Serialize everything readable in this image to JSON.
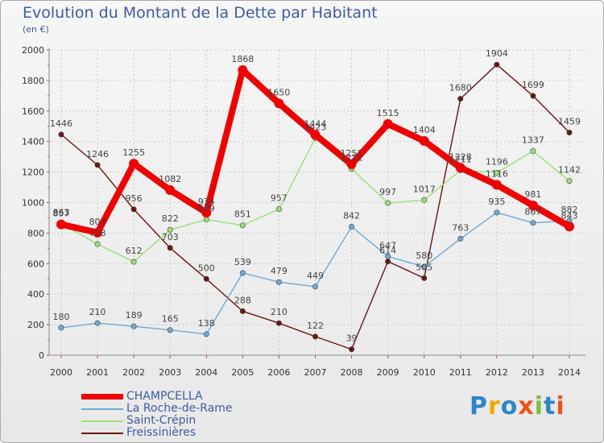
{
  "header": {
    "title": "Evolution du Montant de la Dette par Habitant",
    "subtitle": "(en €)"
  },
  "chart_data": {
    "type": "line",
    "title": "Evolution du Montant de la Dette par Habitant",
    "subtitle": "(en €)",
    "xlabel": "",
    "ylabel": "",
    "ylim": [
      0,
      2000
    ],
    "y_ticks": [
      "0",
      "200",
      "400",
      "600",
      "800",
      "1000",
      "1200",
      "1400",
      "1600",
      "1800",
      "2000"
    ],
    "categories": [
      "2000",
      "2001",
      "2002",
      "2003",
      "2004",
      "2005",
      "2006",
      "2007",
      "2008",
      "2009",
      "2010",
      "2011",
      "2012",
      "2013",
      "2014"
    ],
    "grid": true,
    "legend_position": "bottom-left",
    "series": [
      {
        "name": "Freissinières",
        "color": "#6b1414",
        "values": [
          1446,
          1246,
          956,
          703,
          500,
          288,
          210,
          122,
          39,
          614,
          505,
          1680,
          1904,
          1699,
          1459
        ],
        "labels": [
          "1446",
          "1246",
          "956",
          "703",
          "500",
          "288",
          "210",
          "122",
          "39",
          "614",
          "505",
          "1680",
          "1904",
          "1699",
          "1459"
        ]
      },
      {
        "name": "Saint-Crépin",
        "color": "#99e07a",
        "values": [
          863,
          728,
          612,
          822,
          889,
          851,
          957,
          1423,
          1221,
          997,
          1017,
          1211,
          1196,
          1337,
          1142
        ],
        "labels": [
          "863",
          "728",
          "612",
          "822",
          "889",
          "851",
          "957",
          "1423",
          "1221",
          "997",
          "1017",
          "1211",
          "1196",
          "1337",
          "1142"
        ]
      },
      {
        "name": "La Roche-de-Rame",
        "color": "#6fa9d6",
        "values": [
          180,
          210,
          189,
          165,
          138,
          539,
          479,
          449,
          842,
          647,
          580,
          763,
          935,
          867,
          882
        ],
        "labels": [
          "180",
          "210",
          "189",
          "165",
          "138",
          "539",
          "479",
          "449",
          "842",
          "647",
          "580",
          "763",
          "935",
          "867",
          "882"
        ]
      },
      {
        "name": "CHAMPCELLA",
        "color": "#ee0000",
        "values": [
          857,
          803,
          1255,
          1082,
          934,
          1868,
          1650,
          1444,
          1251,
          1515,
          1404,
          1228,
          1116,
          981,
          843
        ],
        "labels": [
          "857",
          "803",
          "1255",
          "1082",
          "934",
          "1868",
          "1650",
          "1444",
          "1251",
          "1515",
          "1404",
          "1228",
          "1116",
          "981",
          "843"
        ]
      }
    ]
  },
  "legend": {
    "items": [
      {
        "label": "CHAMPCELLA",
        "color": "#ee0000"
      },
      {
        "label": "La Roche-de-Rame",
        "color": "#6fa9d6"
      },
      {
        "label": "Saint-Crépin",
        "color": "#99e07a"
      },
      {
        "label": "Freissinières",
        "color": "#6b1414"
      }
    ]
  },
  "logo": {
    "text": "Proxiti",
    "letters": [
      "P",
      "r",
      "o",
      "x",
      "i",
      "t",
      "i"
    ],
    "colors": [
      "#2e86c8",
      "#f0a800",
      "#2e86c8",
      "#e8541c",
      "#7fbf3f",
      "#2e86c8",
      "#e8541c"
    ]
  }
}
